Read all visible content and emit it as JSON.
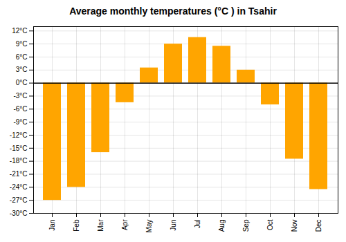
{
  "chart_data": {
    "type": "bar",
    "title": "Average monthly temperatures (°C ) in Tsahir",
    "categories": [
      "Jan",
      "Feb",
      "Mar",
      "Apr",
      "May",
      "Jun",
      "Jul",
      "Aug",
      "Sep",
      "Oct",
      "Nov",
      "Dec"
    ],
    "values": [
      -27,
      -24,
      -16,
      -4.5,
      3.5,
      9,
      10.5,
      8.5,
      3,
      -5,
      -17.5,
      -24.5
    ],
    "color": "#FFA500",
    "ylim": [
      -30,
      13
    ],
    "yticks": [
      {
        "value": -30,
        "label": "-30°C"
      },
      {
        "value": -27,
        "label": "-27°C"
      },
      {
        "value": -24,
        "label": "-24°C"
      },
      {
        "value": -21,
        "label": "-21°C"
      },
      {
        "value": -18,
        "label": "-18°C"
      },
      {
        "value": -15,
        "label": "-15°C"
      },
      {
        "value": -12,
        "label": "-12°C"
      },
      {
        "value": -9,
        "label": "-9°C"
      },
      {
        "value": -6,
        "label": "-6°C"
      },
      {
        "value": -3,
        "label": "-3°C"
      },
      {
        "value": 0,
        "label": "0°C"
      },
      {
        "value": 3,
        "label": "3°C"
      },
      {
        "value": 6,
        "label": "6°C"
      },
      {
        "value": 9,
        "label": "9°C"
      },
      {
        "value": 12,
        "label": "12°C"
      }
    ],
    "grid": true
  }
}
